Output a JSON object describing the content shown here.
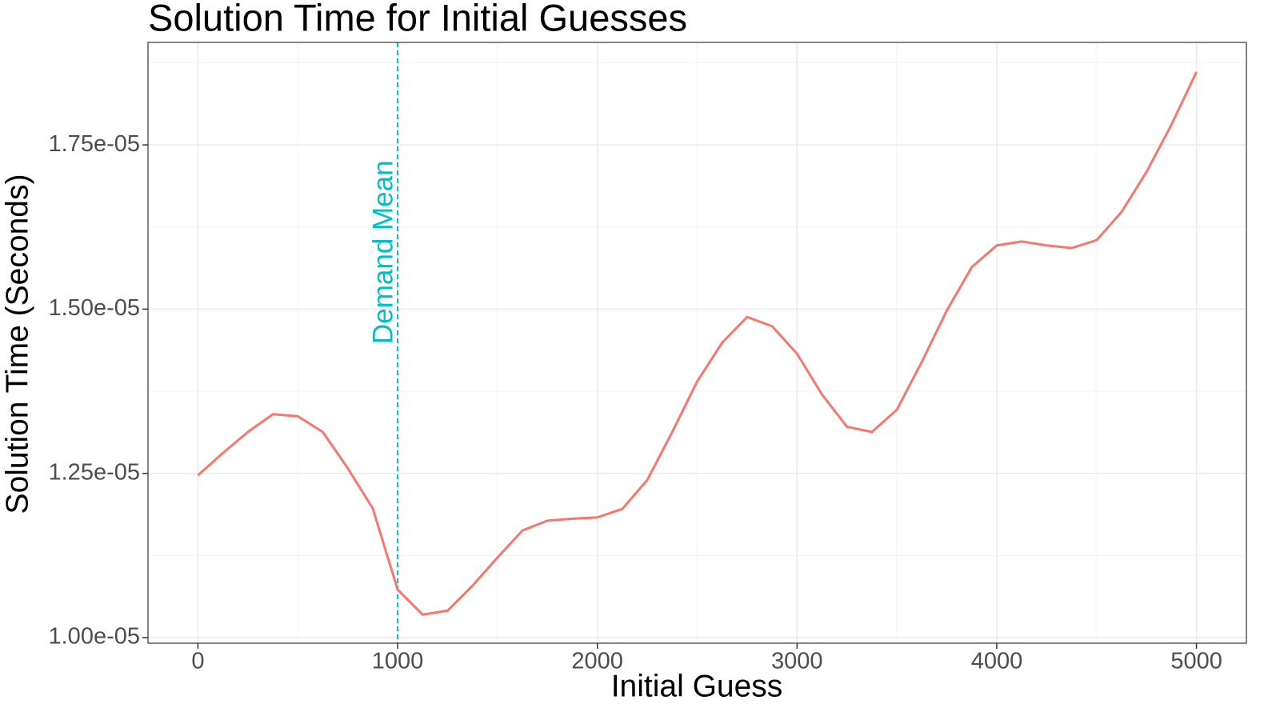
{
  "chart_data": {
    "type": "line",
    "title": "Solution Time for Initial Guesses",
    "x_label": "Initial Guess",
    "y_label": "Solution Time (Seconds)",
    "xlim": [
      -250,
      5250
    ],
    "ylim": [
      9.915e-06,
      1.906e-05
    ],
    "xticks": [
      0,
      1000,
      2000,
      3000,
      4000,
      5000
    ],
    "yticks": [
      {
        "value": 1e-05,
        "label": "1.00e-05"
      },
      {
        "value": 1.25e-05,
        "label": "1.25e-05"
      },
      {
        "value": 1.5e-05,
        "label": "1.50e-05"
      },
      {
        "value": 1.75e-05,
        "label": "1.75e-05"
      }
    ],
    "minor_xticks": [
      500,
      1500,
      2500,
      3500,
      4500
    ],
    "minor_yticks": [
      1.125e-05,
      1.375e-05,
      1.625e-05,
      1.875e-05
    ],
    "grid": true,
    "x": [
      0,
      125,
      250,
      375,
      500,
      625,
      750,
      875,
      1000,
      1125,
      1250,
      1375,
      1500,
      1625,
      1750,
      1875,
      2000,
      2125,
      2250,
      2375,
      2500,
      2625,
      2750,
      2875,
      3000,
      3125,
      3250,
      3375,
      3500,
      3625,
      3750,
      3875,
      4000,
      4125,
      4250,
      4375,
      4500,
      4625,
      4750,
      4875,
      5000
    ],
    "series": [
      {
        "color": "#F8766D",
        "values": [
          1.247e-05,
          1.281e-05,
          1.313e-05,
          1.34e-05,
          1.337e-05,
          1.313e-05,
          1.258e-05,
          1.197e-05,
          1.073e-05,
          1.035e-05,
          1.041e-05,
          1.079e-05,
          1.122e-05,
          1.163e-05,
          1.178e-05,
          1.181e-05,
          1.183e-05,
          1.196e-05,
          1.24e-05,
          1.313e-05,
          1.39e-05,
          1.449e-05,
          1.488e-05,
          1.474e-05,
          1.432e-05,
          1.37e-05,
          1.321e-05,
          1.313e-05,
          1.347e-05,
          1.42e-05,
          1.498e-05,
          1.564e-05,
          1.597e-05,
          1.603e-05,
          1.597e-05,
          1.593e-05,
          1.605e-05,
          1.648e-05,
          1.709e-05,
          1.781e-05,
          1.861e-05
        ]
      }
    ],
    "vline": {
      "x": 1000,
      "label": "Demand Mean",
      "color": "#00BFC4"
    }
  }
}
